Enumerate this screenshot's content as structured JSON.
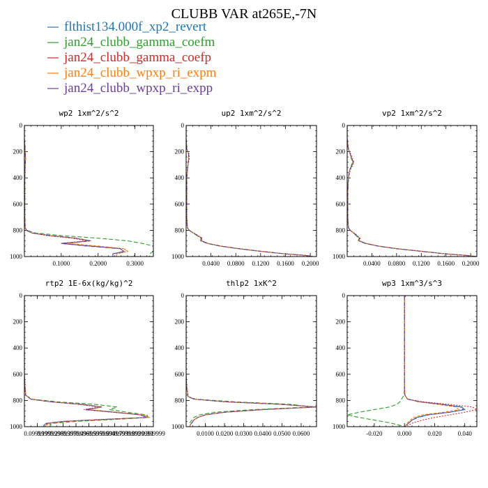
{
  "figure": {
    "title": "CLUBB VAR at265E,-7N",
    "legend": [
      {
        "label": "flthist134.000f_xp2_revert",
        "color": "#1f77b4"
      },
      {
        "label": "jan24_clubb_gamma_coefm",
        "color": "#2ca02c"
      },
      {
        "label": "jan24_clubb_gamma_coefp",
        "color": "#d62728"
      },
      {
        "label": "jan24_clubb_wpxp_ri_expm",
        "color": "#ff7f0e"
      },
      {
        "label": "jan24_clubb_wpxp_ri_expp",
        "color": "#6a3d9a"
      }
    ]
  },
  "chart_data": [
    {
      "type": "line",
      "title": "wp2  1xm^2/s^2",
      "xlim": [
        0,
        0.35
      ],
      "ylim": [
        1000,
        0
      ],
      "xticks": [
        0.1,
        0.2,
        0.3
      ],
      "xtick_labels": [
        "0.1000",
        "0.2000",
        "0.3000"
      ],
      "yticks": [
        0,
        200,
        400,
        600,
        800,
        1000
      ],
      "ytick_labels": [
        "0",
        "200",
        "400",
        "600",
        "800",
        "1000"
      ],
      "y": [
        0,
        100,
        200,
        250,
        300,
        400,
        500,
        600,
        700,
        780,
        800,
        820,
        840,
        860,
        880,
        900,
        920,
        940,
        960,
        980,
        1000
      ],
      "series": [
        {
          "color": "#1f77b4",
          "values": [
            0,
            0,
            0.002,
            0.003,
            0.002,
            0.001,
            0.001,
            0.001,
            0.001,
            0.002,
            0.006,
            0.02,
            0.07,
            0.14,
            0.18,
            0.1,
            0.18,
            0.26,
            0.27,
            0.24,
            0.24
          ]
        },
        {
          "color": "#2ca02c",
          "values": [
            0,
            0,
            0.002,
            0.003,
            0.002,
            0.001,
            0.001,
            0.001,
            0.001,
            0.002,
            0.006,
            0.03,
            0.1,
            0.2,
            0.28,
            0.32,
            0.35,
            0.35,
            0.35,
            0.34,
            0.34
          ]
        },
        {
          "color": "#d62728",
          "values": [
            0,
            0,
            0.002,
            0.003,
            0.002,
            0.001,
            0.001,
            0.001,
            0.001,
            0.002,
            0.006,
            0.02,
            0.06,
            0.13,
            0.17,
            0.1,
            0.18,
            0.27,
            0.28,
            0.25,
            0.25
          ]
        },
        {
          "color": "#ff7f0e",
          "values": [
            0,
            0,
            0.002,
            0.003,
            0.002,
            0.001,
            0.001,
            0.001,
            0.001,
            0.002,
            0.006,
            0.02,
            0.07,
            0.14,
            0.18,
            0.12,
            0.2,
            0.27,
            0.28,
            0.25,
            0.25
          ]
        },
        {
          "color": "#6a3d9a",
          "values": [
            0,
            0,
            0.002,
            0.003,
            0.002,
            0.001,
            0.001,
            0.001,
            0.001,
            0.002,
            0.006,
            0.02,
            0.07,
            0.14,
            0.18,
            0.1,
            0.17,
            0.26,
            0.27,
            0.24,
            0.24
          ]
        }
      ]
    },
    {
      "type": "line",
      "title": "up2  1xm^2/s^2",
      "xlim": [
        0,
        0.21
      ],
      "ylim": [
        1000,
        0
      ],
      "xticks": [
        0.04,
        0.08,
        0.12,
        0.16,
        0.2
      ],
      "xtick_labels": [
        "0.0400",
        "0.0800",
        "0.1200",
        "0.1600",
        "0.2000"
      ],
      "yticks": [
        0,
        200,
        400,
        600,
        800,
        1000
      ],
      "ytick_labels": [
        "0",
        "200",
        "400",
        "600",
        "800",
        "1000"
      ],
      "y": [
        0,
        100,
        180,
        200,
        220,
        260,
        300,
        340,
        400,
        500,
        600,
        700,
        780,
        800,
        830,
        860,
        880,
        900,
        920,
        940,
        960,
        980,
        990,
        1000
      ],
      "series": [
        {
          "color": "#1f77b4",
          "values": [
            0,
            0,
            0.001,
            0.003,
            0.004,
            0.004,
            0.003,
            0.002,
            0.001,
            0.001,
            0.001,
            0.001,
            0.002,
            0.005,
            0.015,
            0.025,
            0.024,
            0.035,
            0.055,
            0.085,
            0.12,
            0.16,
            0.19,
            0.205
          ]
        },
        {
          "color": "#2ca02c",
          "values": [
            0,
            0,
            0.001,
            0.003,
            0.004,
            0.004,
            0.003,
            0.002,
            0.001,
            0.001,
            0.001,
            0.001,
            0.002,
            0.005,
            0.014,
            0.024,
            0.023,
            0.034,
            0.054,
            0.084,
            0.12,
            0.16,
            0.19,
            0.205
          ]
        },
        {
          "color": "#d62728",
          "values": [
            0,
            0,
            0.001,
            0.003,
            0.005,
            0.005,
            0.003,
            0.002,
            0.001,
            0.001,
            0.001,
            0.001,
            0.002,
            0.005,
            0.016,
            0.026,
            0.025,
            0.036,
            0.056,
            0.086,
            0.12,
            0.16,
            0.19,
            0.205
          ]
        },
        {
          "color": "#ff7f0e",
          "values": [
            0,
            0,
            0.001,
            0.003,
            0.004,
            0.004,
            0.003,
            0.002,
            0.001,
            0.001,
            0.001,
            0.001,
            0.002,
            0.005,
            0.015,
            0.025,
            0.024,
            0.035,
            0.055,
            0.085,
            0.12,
            0.16,
            0.19,
            0.205
          ]
        },
        {
          "color": "#6a3d9a",
          "values": [
            0,
            0,
            0.001,
            0.003,
            0.004,
            0.004,
            0.003,
            0.002,
            0.001,
            0.001,
            0.001,
            0.001,
            0.002,
            0.005,
            0.015,
            0.025,
            0.024,
            0.035,
            0.055,
            0.085,
            0.12,
            0.16,
            0.19,
            0.205
          ]
        }
      ]
    },
    {
      "type": "line",
      "title": "vp2  1xm^2/s^2",
      "xlim": [
        0,
        0.21
      ],
      "ylim": [
        1000,
        0
      ],
      "xticks": [
        0.04,
        0.08,
        0.12,
        0.16,
        0.2
      ],
      "xtick_labels": [
        "0.0400",
        "0.0800",
        "0.1200",
        "0.1600",
        "0.2000"
      ],
      "yticks": [
        0,
        200,
        400,
        600,
        800,
        1000
      ],
      "ytick_labels": [
        "0",
        "200",
        "400",
        "600",
        "800",
        "1000"
      ],
      "y": [
        0,
        100,
        180,
        220,
        260,
        280,
        300,
        340,
        400,
        500,
        600,
        700,
        780,
        800,
        830,
        860,
        880,
        900,
        920,
        940,
        960,
        980,
        990,
        1000
      ],
      "series": [
        {
          "color": "#1f77b4",
          "values": [
            0,
            0,
            0.002,
            0.005,
            0.008,
            0.01,
            0.008,
            0.004,
            0.002,
            0.001,
            0.001,
            0.001,
            0.002,
            0.005,
            0.013,
            0.02,
            0.019,
            0.03,
            0.05,
            0.08,
            0.12,
            0.16,
            0.19,
            0.21
          ]
        },
        {
          "color": "#2ca02c",
          "values": [
            0,
            0,
            0.002,
            0.005,
            0.007,
            0.009,
            0.007,
            0.004,
            0.002,
            0.001,
            0.001,
            0.001,
            0.002,
            0.005,
            0.012,
            0.019,
            0.018,
            0.029,
            0.049,
            0.079,
            0.12,
            0.16,
            0.19,
            0.21
          ]
        },
        {
          "color": "#d62728",
          "values": [
            0,
            0,
            0.002,
            0.006,
            0.009,
            0.011,
            0.009,
            0.005,
            0.002,
            0.001,
            0.001,
            0.001,
            0.002,
            0.005,
            0.014,
            0.021,
            0.02,
            0.031,
            0.051,
            0.081,
            0.12,
            0.16,
            0.19,
            0.21
          ]
        },
        {
          "color": "#ff7f0e",
          "values": [
            0,
            0,
            0.002,
            0.005,
            0.008,
            0.01,
            0.008,
            0.004,
            0.002,
            0.001,
            0.001,
            0.001,
            0.002,
            0.005,
            0.013,
            0.02,
            0.019,
            0.03,
            0.05,
            0.08,
            0.12,
            0.16,
            0.19,
            0.21
          ]
        },
        {
          "color": "#6a3d9a",
          "values": [
            0,
            0,
            0.002,
            0.005,
            0.008,
            0.01,
            0.008,
            0.004,
            0.002,
            0.001,
            0.001,
            0.001,
            0.002,
            0.005,
            0.013,
            0.02,
            0.019,
            0.03,
            0.05,
            0.08,
            0.12,
            0.16,
            0.19,
            0.21
          ]
        }
      ]
    },
    {
      "type": "line",
      "title": "rtp2  1E-6x(kg/kg)^2",
      "xlim": [
        0,
        1
      ],
      "ylim": [
        1000,
        0
      ],
      "xticks": [
        0.0999999,
        0.1999998,
        0.2999997,
        0.3999996,
        0.4999995,
        0.5999994,
        0.6999993,
        0.7999992,
        0.8999991,
        0.999999
      ],
      "xtick_labels": [
        "0.0999999",
        "0.1999998",
        "0.2999997",
        "0.3999996",
        "0.4999995",
        "0.5999994",
        "0.6999993",
        "0.7999992",
        "0.8999991",
        "0.999999"
      ],
      "yticks": [
        0,
        200,
        400,
        600,
        800,
        1000
      ],
      "ytick_labels": [
        "0",
        "200",
        "400",
        "600",
        "800",
        "1000"
      ],
      "y": [
        0,
        300,
        600,
        700,
        760,
        790,
        810,
        830,
        850,
        870,
        890,
        910,
        930,
        945,
        960,
        975,
        990,
        1000
      ],
      "series": [
        {
          "color": "#1f77b4",
          "values": [
            0,
            0,
            0,
            0.005,
            0.01,
            0.05,
            0.2,
            0.45,
            0.6,
            0.48,
            0.7,
            0.9,
            0.95,
            0.6,
            0.3,
            0.17,
            0.15,
            0.15
          ]
        },
        {
          "color": "#2ca02c",
          "values": [
            0,
            0,
            0,
            0.005,
            0.01,
            0.06,
            0.25,
            0.55,
            0.72,
            0.66,
            0.8,
            0.95,
            0.96,
            0.7,
            0.4,
            0.22,
            0.2,
            0.2
          ]
        },
        {
          "color": "#d62728",
          "values": [
            0,
            0,
            0,
            0.005,
            0.01,
            0.05,
            0.2,
            0.42,
            0.58,
            0.46,
            0.68,
            0.92,
            0.97,
            0.62,
            0.32,
            0.18,
            0.16,
            0.16
          ]
        },
        {
          "color": "#ff7f0e",
          "values": [
            0,
            0,
            0,
            0.005,
            0.01,
            0.05,
            0.2,
            0.45,
            0.6,
            0.5,
            0.72,
            0.93,
            0.96,
            0.63,
            0.33,
            0.19,
            0.17,
            0.17
          ]
        },
        {
          "color": "#6a3d9a",
          "values": [
            0,
            0,
            0,
            0.005,
            0.01,
            0.05,
            0.2,
            0.44,
            0.6,
            0.47,
            0.7,
            0.9,
            0.95,
            0.6,
            0.3,
            0.17,
            0.15,
            0.15
          ]
        }
      ]
    },
    {
      "type": "line",
      "title": "thlp2  1xK^2",
      "xlim": [
        0,
        0.068
      ],
      "ylim": [
        1000,
        0
      ],
      "xticks": [
        0.01,
        0.02,
        0.03,
        0.04,
        0.05,
        0.06
      ],
      "xtick_labels": [
        "0.0100",
        "0.0200",
        "0.0300",
        "0.0400",
        "0.0500",
        "0.0600"
      ],
      "yticks": [
        0,
        200,
        400,
        600,
        800,
        1000
      ],
      "ytick_labels": [
        "0",
        "200",
        "400",
        "600",
        "800",
        "1000"
      ],
      "y": [
        0,
        300,
        600,
        700,
        770,
        790,
        810,
        830,
        850,
        870,
        890,
        910,
        930,
        950,
        970,
        990,
        1000
      ],
      "series": [
        {
          "color": "#1f77b4",
          "values": [
            0,
            0,
            0,
            0.0003,
            0.001,
            0.004,
            0.02,
            0.05,
            0.068,
            0.04,
            0.02,
            0.01,
            0.006,
            0.004,
            0.003,
            0.002,
            0.002
          ]
        },
        {
          "color": "#2ca02c",
          "values": [
            0,
            0,
            0,
            0.0003,
            0.001,
            0.005,
            0.025,
            0.055,
            0.065,
            0.035,
            0.015,
            0.007,
            0.004,
            0.003,
            0.002,
            0.002,
            0.002
          ]
        },
        {
          "color": "#d62728",
          "values": [
            0,
            0,
            0,
            0.0003,
            0.001,
            0.004,
            0.02,
            0.05,
            0.068,
            0.04,
            0.02,
            0.01,
            0.006,
            0.004,
            0.003,
            0.002,
            0.002
          ]
        },
        {
          "color": "#ff7f0e",
          "values": [
            0,
            0,
            0,
            0.0003,
            0.001,
            0.004,
            0.02,
            0.05,
            0.068,
            0.04,
            0.02,
            0.01,
            0.006,
            0.004,
            0.003,
            0.002,
            0.002
          ]
        },
        {
          "color": "#6a3d9a",
          "values": [
            0,
            0,
            0,
            0.0003,
            0.001,
            0.004,
            0.02,
            0.05,
            0.068,
            0.04,
            0.02,
            0.01,
            0.006,
            0.004,
            0.003,
            0.002,
            0.002
          ]
        }
      ]
    },
    {
      "type": "line",
      "title": "wp3  1xm^3/s^3",
      "xlim": [
        -0.038,
        0.048
      ],
      "ylim": [
        1000,
        0
      ],
      "xticks": [
        -0.02,
        0,
        0.02,
        0.04
      ],
      "xtick_labels": [
        "-0.020",
        "0.000",
        "0.020",
        "0.040"
      ],
      "yticks": [
        0,
        200,
        400,
        600,
        800,
        1000
      ],
      "ytick_labels": [
        "0",
        "200",
        "400",
        "600",
        "800",
        "1000"
      ],
      "y": [
        0,
        200,
        400,
        600,
        700,
        760,
        790,
        810,
        830,
        850,
        870,
        890,
        910,
        930,
        950,
        970,
        990,
        1000
      ],
      "series": [
        {
          "color": "#1f77b4",
          "values": [
            0,
            0,
            0,
            0,
            0,
            0.0003,
            0.002,
            0.01,
            0.025,
            0.038,
            0.04,
            0.03,
            0.015,
            0.008,
            0.005,
            0.003,
            0.001,
            0
          ]
        },
        {
          "color": "#2ca02c",
          "values": [
            0,
            0,
            0,
            0,
            0,
            -0.0003,
            -0.002,
            -0.003,
            -0.005,
            -0.01,
            -0.02,
            -0.03,
            -0.038,
            -0.03,
            -0.02,
            -0.01,
            -0.003,
            0
          ]
        },
        {
          "color": "#d62728",
          "values": [
            0,
            0,
            0,
            0,
            0,
            0.0003,
            0.002,
            0.012,
            0.03,
            0.045,
            0.048,
            0.04,
            0.03,
            0.02,
            0.012,
            0.006,
            0.002,
            0
          ]
        },
        {
          "color": "#ff7f0e",
          "values": [
            0,
            0,
            0,
            0,
            0,
            0.0003,
            0.002,
            0.009,
            0.022,
            0.034,
            0.036,
            0.026,
            0.012,
            0.006,
            0.004,
            0.002,
            0.001,
            0
          ]
        },
        {
          "color": "#6a3d9a",
          "values": [
            0,
            0,
            0,
            0,
            0,
            0.0003,
            0.002,
            0.01,
            0.025,
            0.037,
            0.039,
            0.03,
            0.016,
            0.009,
            0.005,
            0.003,
            0.001,
            0
          ]
        }
      ]
    }
  ]
}
